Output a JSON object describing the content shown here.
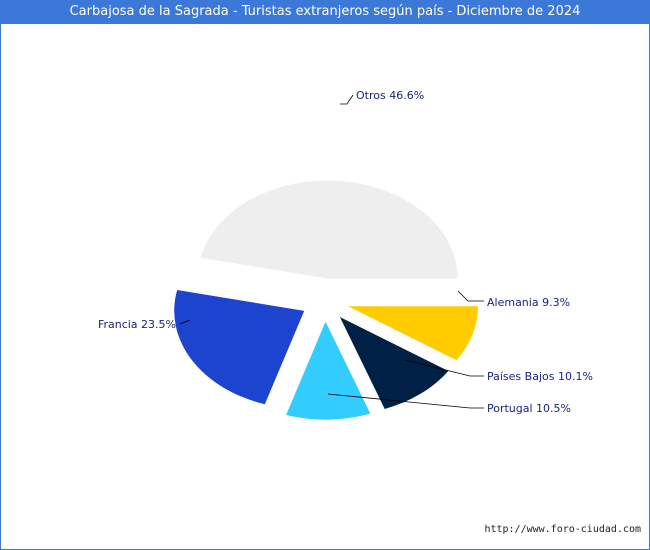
{
  "window": {
    "title": "Carbajosa de la Sagrada - Turistas extranjeros según país - Diciembre de 2024"
  },
  "chart_data": {
    "type": "pie",
    "title": "Carbajosa de la Sagrada - Turistas extranjeros según país - Diciembre de 2024",
    "slices": [
      {
        "name": "Otros",
        "value": 46.6,
        "label": "Otros 46.6%",
        "color": "#eeeeee"
      },
      {
        "name": "Alemania",
        "value": 9.3,
        "label": "Alemania 9.3%",
        "color": "#ffcc00"
      },
      {
        "name": "Países Bajos",
        "value": 10.1,
        "label": "Países Bajos 10.1%",
        "color": "#002046"
      },
      {
        "name": "Portugal",
        "value": 10.5,
        "label": "Portugal 10.5%",
        "color": "#33ccff"
      },
      {
        "name": "Francia",
        "value": 23.5,
        "label": "Francia 23.5%",
        "color": "#1d44cf"
      }
    ],
    "unit": "%"
  },
  "footer": {
    "source_url": "http://www.foro-ciudad.com"
  }
}
